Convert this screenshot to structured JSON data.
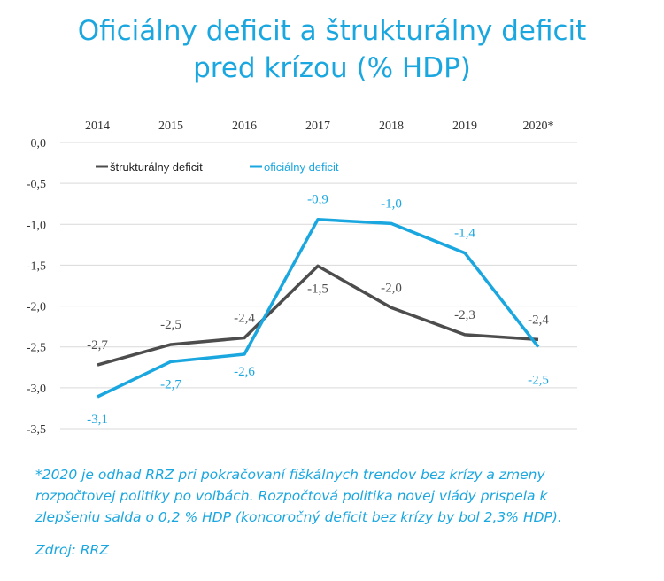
{
  "title": {
    "line1": "Oficiálny deficit a štrukturálny deficit",
    "line2": "pred krízou (% HDP)"
  },
  "chart_data": {
    "type": "line",
    "title": "Oficiálny deficit a štrukturálny deficit pred krízou (% HDP)",
    "categories": [
      "2014",
      "2015",
      "2016",
      "2017",
      "2018",
      "2019",
      "2020*"
    ],
    "ylim": [
      -3.5,
      0
    ],
    "yticks": [
      0,
      -0.5,
      -1,
      -1.5,
      -2,
      -2.5,
      -3,
      -3.5
    ],
    "ytick_labels": [
      "0,0",
      "-0,5",
      "-1,0",
      "-1,5",
      "-2,0",
      "-2,5",
      "-3,0",
      "-3,5"
    ],
    "grid": true,
    "legend": "top-left",
    "xaxis_position": "top",
    "series": [
      {
        "name": "štrukturálny deficit",
        "color": "#4d4d4d",
        "values": [
          -2.72,
          -2.47,
          -2.39,
          -1.51,
          -2.02,
          -2.35,
          -2.41
        ],
        "labels": [
          "-2,7",
          "-2,5",
          "-2,4",
          "-1,5",
          "-2,0",
          "-2,3",
          "-2,4"
        ]
      },
      {
        "name": "oficiálny deficit",
        "color": "#1aa7e0",
        "values": [
          -3.11,
          -2.68,
          -2.59,
          -0.94,
          -0.99,
          -1.35,
          -2.5
        ],
        "labels": [
          "-3,1",
          "-2,7",
          "-2,6",
          "-0,9",
          "-1,0",
          "-1,4",
          "-2,5"
        ]
      }
    ]
  },
  "note": {
    "line1": "*2020 je odhad RRZ pri pokračovaní fiškálnych trendov bez krízy a zmeny",
    "line2": "rozpočtovej politiky  po voľbách. Rozpočtová politika novej vlády prispela k",
    "line3": "zlepšeniu salda o 0,2 % HDP (koncoročný deficit bez krízy by bol 2,3% HDP)."
  },
  "source": "Zdroj: RRZ"
}
